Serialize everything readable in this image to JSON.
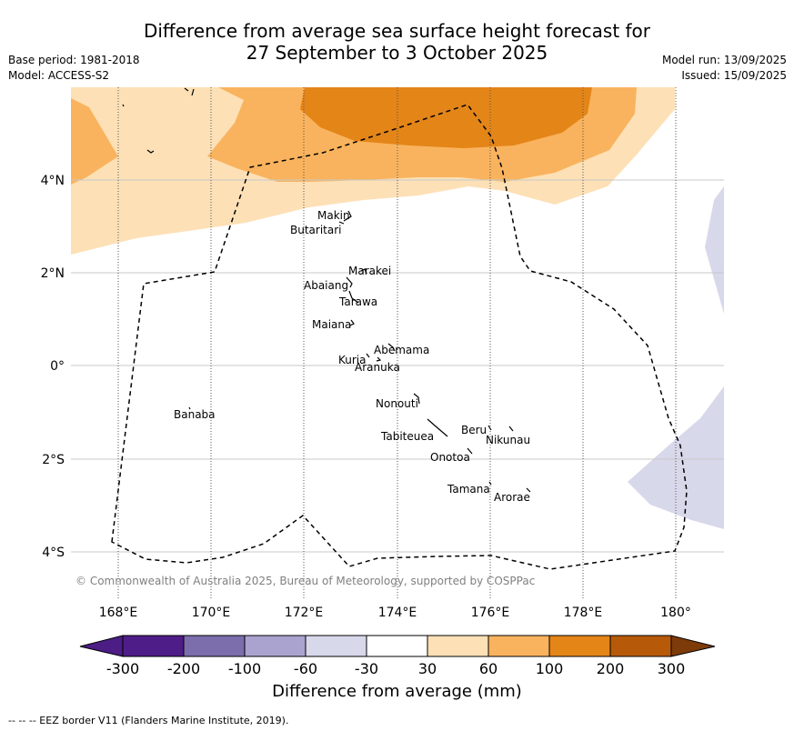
{
  "title_line1": "Difference from average sea surface height forecast for",
  "title_line2": "27 September to 3 October 2025",
  "meta": {
    "base_period": "Base period: 1981-2018",
    "model": "Model: ACCESS-S2",
    "model_run": "Model run: 13/09/2025",
    "issued": "Issued: 15/09/2025"
  },
  "map": {
    "lon_labels": [
      "168°E",
      "170°E",
      "172°E",
      "174°E",
      "176°E",
      "178°E",
      "180°"
    ],
    "lat_labels": [
      "4°N",
      "2°N",
      "0°",
      "2°S",
      "4°S"
    ],
    "places": [
      "Makin",
      "Butaritari",
      "Marakei",
      "Abaiang",
      "Tarawa",
      "Maiana",
      "Abemama",
      "Kuria",
      "Aranuka",
      "Banaba",
      "Nonouti",
      "Beru",
      "Nikunau",
      "Tabiteuea",
      "Onotoa",
      "Tamana",
      "Arorae"
    ],
    "copyright": "© Commonwealth of Australia 2025, Bureau of Meteorology, supported by COSPPac"
  },
  "colorbar": {
    "ticks": [
      "-300",
      "-200",
      "-100",
      "-60",
      "-30",
      "30",
      "60",
      "100",
      "200",
      "300"
    ],
    "colors": [
      "#4c1d85",
      "#4f1d87",
      "#7c6ead",
      "#aba3cf",
      "#d8d8eb",
      "#ffffff",
      "#fde0b6",
      "#f9b35e",
      "#e48518",
      "#b65a09",
      "#7d3b0a"
    ],
    "label": "Difference from average (mm)"
  },
  "footer": "--  --  -- EEZ border V11 (Flanders Marine Institute, 2019)."
}
